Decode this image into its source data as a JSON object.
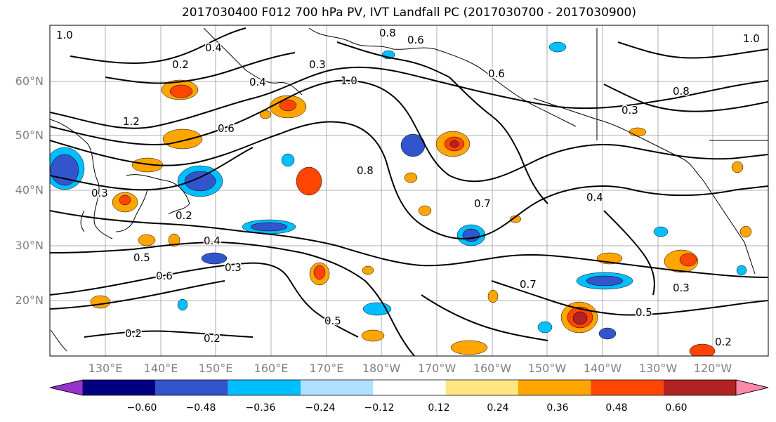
{
  "title": "2017030400 F012 700 hPa PV, IVT Landfall PC (2017030700 - 2017030900)",
  "lat_labels": [
    "60°N",
    "50°N",
    "40°N",
    "30°N",
    "20°N"
  ],
  "lon_labels": [
    "130°E",
    "140°E",
    "150°E",
    "160°E",
    "170°E",
    "180°W",
    "170°W",
    "160°W",
    "150°W",
    "140°W",
    "130°W",
    "120°W"
  ],
  "colorbar": {
    "ticks": [
      "−0.60",
      "−0.48",
      "−0.36",
      "−0.24",
      "−0.12",
      "0.12",
      "0.24",
      "0.36",
      "0.48",
      "0.60"
    ],
    "colors": [
      "#9932CC",
      "#000080",
      "#3355CC",
      "#00BFFF",
      "#B0E0FF",
      "#FFFFFF",
      "#FFE680",
      "#FFA500",
      "#FF4500",
      "#B22222",
      "#FF88AA"
    ]
  },
  "contour_labels": [
    {
      "text": "1.0"
    },
    {
      "text": "0.4"
    },
    {
      "text": "0.2"
    },
    {
      "text": "0.8"
    },
    {
      "text": "0.6"
    },
    {
      "text": "0.3"
    },
    {
      "text": "1.0"
    },
    {
      "text": "0.4"
    },
    {
      "text": "1.2"
    },
    {
      "text": "0.6"
    },
    {
      "text": "0.3"
    },
    {
      "text": "0.8"
    },
    {
      "text": "0.6"
    },
    {
      "text": "1.0"
    },
    {
      "text": "0.2"
    },
    {
      "text": "0.3"
    },
    {
      "text": "0.7"
    },
    {
      "text": "0.5"
    },
    {
      "text": "0.4"
    },
    {
      "text": "0.6"
    },
    {
      "text": "0.2"
    },
    {
      "text": "0.5"
    },
    {
      "text": "0.2"
    },
    {
      "text": "0.3"
    },
    {
      "text": "0.5"
    },
    {
      "text": "0.2"
    },
    {
      "text": "0.3"
    },
    {
      "text": "0.8"
    },
    {
      "text": "0.4"
    },
    {
      "text": "0.7"
    }
  ]
}
